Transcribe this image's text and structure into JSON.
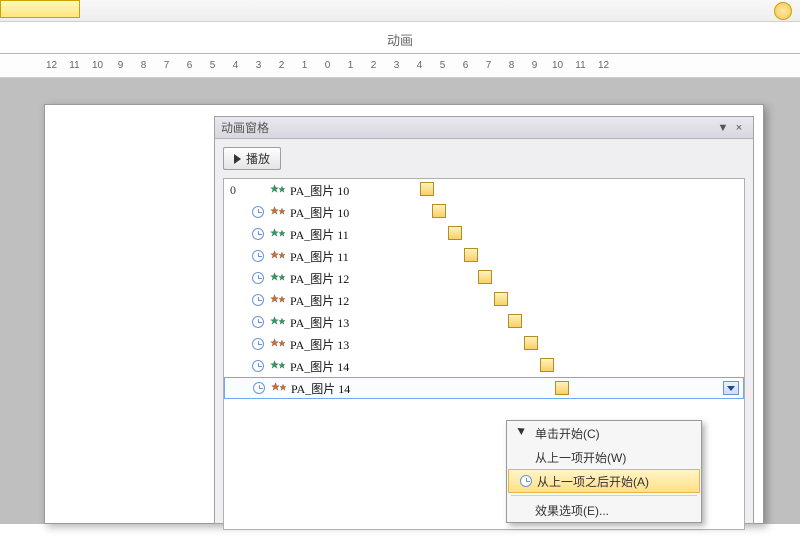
{
  "colors": {
    "selection_border": "#2a6bd4",
    "timeline_block_fill_top": "#fff2bb",
    "timeline_block_fill_bottom": "#f6d06a",
    "timeline_block_border": "#b58e20",
    "menu_highlight_top": "#fff4c8",
    "menu_highlight_bottom": "#ffe088",
    "workspace_bg": "#bfbfbf"
  },
  "ribbon": {
    "tab_label": "动画"
  },
  "ruler_marks": [
    "12",
    "11",
    "10",
    "9",
    "8",
    "7",
    "6",
    "5",
    "4",
    "3",
    "2",
    "1",
    "0",
    "1",
    "2",
    "3",
    "4",
    "5",
    "6",
    "7",
    "8",
    "9",
    "10",
    "11",
    "12"
  ],
  "panel": {
    "title": "动画窗格",
    "play_label": "播放",
    "caret": "▼",
    "close": "×"
  },
  "star_colors": {
    "green": "#1ea05a",
    "orange": "#e3661f"
  },
  "rows": [
    {
      "seq": "0",
      "trigger": "none",
      "star": "green",
      "name": "PA_图片 10",
      "offset": 0,
      "selected": false
    },
    {
      "seq": "",
      "trigger": "clock",
      "star": "orange",
      "name": "PA_图片 10",
      "offset": 12,
      "selected": false
    },
    {
      "seq": "",
      "trigger": "clock",
      "star": "green",
      "name": "PA_图片 11",
      "offset": 28,
      "selected": false
    },
    {
      "seq": "",
      "trigger": "clock",
      "star": "orange",
      "name": "PA_图片 11",
      "offset": 44,
      "selected": false
    },
    {
      "seq": "",
      "trigger": "clock",
      "star": "green",
      "name": "PA_图片 12",
      "offset": 58,
      "selected": false
    },
    {
      "seq": "",
      "trigger": "clock",
      "star": "orange",
      "name": "PA_图片 12",
      "offset": 74,
      "selected": false
    },
    {
      "seq": "",
      "trigger": "clock",
      "star": "green",
      "name": "PA_图片 13",
      "offset": 88,
      "selected": false
    },
    {
      "seq": "",
      "trigger": "clock",
      "star": "orange",
      "name": "PA_图片 13",
      "offset": 104,
      "selected": false
    },
    {
      "seq": "",
      "trigger": "clock",
      "star": "green",
      "name": "PA_图片 14",
      "offset": 120,
      "selected": false
    },
    {
      "seq": "",
      "trigger": "clock",
      "star": "orange",
      "name": "PA_图片 14",
      "offset": 134,
      "selected": true
    }
  ],
  "context_menu": {
    "items": [
      {
        "icon": "mouse",
        "label": "单击开始(C)",
        "highlight": false
      },
      {
        "icon": "",
        "label": "从上一项开始(W)",
        "highlight": false
      },
      {
        "icon": "clock",
        "label": "从上一项之后开始(A)",
        "highlight": true
      },
      {
        "icon": "sep",
        "label": ""
      },
      {
        "icon": "",
        "label": "效果选项(E)...",
        "highlight": false
      }
    ]
  }
}
